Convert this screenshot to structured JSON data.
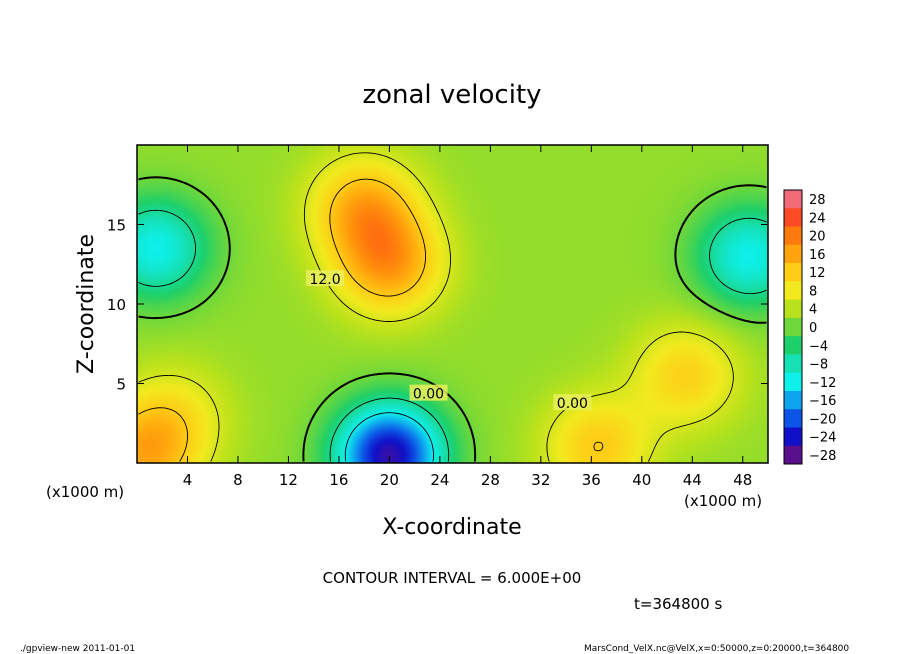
{
  "chart_data": {
    "type": "heatmap",
    "title": "zonal velocity",
    "xlabel": "X-coordinate",
    "ylabel": "Z-coordinate",
    "x_unit_label": "(x1000 m)",
    "y_unit_label": "(x1000 m)",
    "xlim": [
      0,
      50
    ],
    "ylim": [
      0,
      20
    ],
    "x_ticks": [
      4,
      8,
      12,
      16,
      20,
      24,
      28,
      32,
      36,
      40,
      44,
      48
    ],
    "y_ticks": [
      5,
      10,
      15
    ],
    "colorbar": {
      "levels": [
        28,
        24,
        20,
        16,
        12,
        8,
        4,
        0,
        -4,
        -8,
        -12,
        -16,
        -20,
        -24,
        -28
      ],
      "labels": [
        "28",
        "24",
        "20",
        "16",
        "12",
        "8",
        "4",
        "0",
        "−4",
        "−8",
        "−12",
        "−16",
        "−20",
        "−24",
        "−28"
      ],
      "colors": [
        "#f06a78",
        "#ff4a26",
        "#ff7a0c",
        "#ffa40c",
        "#ffcc16",
        "#f2ea1e",
        "#b9e21c",
        "#6ed83b",
        "#1ed06a",
        "#16e0b4",
        "#0ef0ea",
        "#0ea5f0",
        "#0d55e6",
        "#1010c8",
        "#5a108c"
      ]
    },
    "contour_labels": [
      {
        "text": "12.0",
        "x": 14.9,
        "z": 11.5
      },
      {
        "text": "0.00",
        "x": 23.1,
        "z": 4.3
      },
      {
        "text": "0.00",
        "x": 34.5,
        "z": 3.7
      }
    ],
    "field_features": [
      {
        "kind": "max",
        "x": 20,
        "z": 12.5,
        "value": 16
      },
      {
        "kind": "max",
        "x": 18,
        "z": 16,
        "value": 15
      },
      {
        "kind": "min",
        "x": 20,
        "z": 0.5,
        "value": -26
      },
      {
        "kind": "min",
        "x": 1.5,
        "z": 13.5,
        "value": -12
      },
      {
        "kind": "min",
        "x": 48.5,
        "z": 13,
        "value": -12
      },
      {
        "kind": "max",
        "x": 36.5,
        "z": 1.0,
        "value": 12
      },
      {
        "kind": "max",
        "x": 43.5,
        "z": 5.5,
        "value": 11
      },
      {
        "kind": "max",
        "x": 3,
        "z": 3,
        "value": 8
      },
      {
        "kind": "max",
        "x": 0.5,
        "z": 0.5,
        "value": 14
      }
    ],
    "contour_interval_text": "CONTOUR INTERVAL = 6.000E+00",
    "time_text": "t=364800  s",
    "footer_left": "./gpview-new   2011-01-01",
    "footer_right": "MarsCond_VelX.nc@VelX,x=0:50000,z=0:20000,t=364800"
  }
}
